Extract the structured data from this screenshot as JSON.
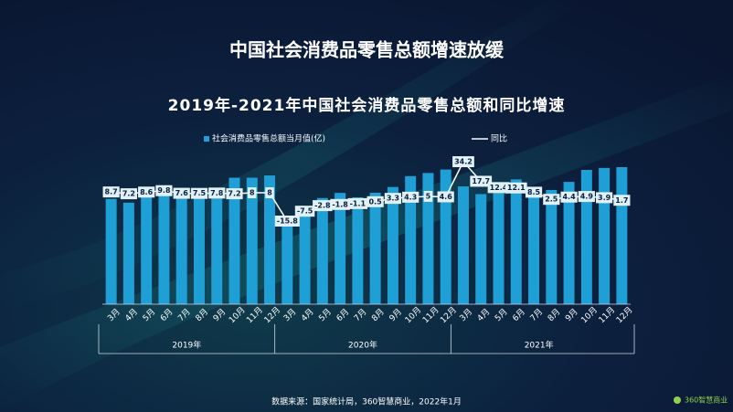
{
  "page_title": "中国社会消费品零售总额增速放缓",
  "chart_data": {
    "type": "bar-line",
    "title": "2019年-2021年中国社会消费品零售总额和同比增速",
    "categories": [
      "3月",
      "4月",
      "5月",
      "6月",
      "7月",
      "8月",
      "9月",
      "10月",
      "11月",
      "12月",
      "3月",
      "4月",
      "5月",
      "6月",
      "7月",
      "8月",
      "9月",
      "10月",
      "11月",
      "12月",
      "3月",
      "4月",
      "5月",
      "6月",
      "7月",
      "8月",
      "9月",
      "10月",
      "11月",
      "12月"
    ],
    "groups": [
      "2019年",
      "2020年",
      "2021年"
    ],
    "series": [
      {
        "name": "社会消费品零售总额当月值(亿)",
        "kind": "bar",
        "color": "#1e9fd6",
        "values": [
          31726,
          30586,
          32956,
          33878,
          33073,
          33896,
          34495,
          38104,
          38094,
          38777,
          26450,
          28178,
          31973,
          33526,
          32203,
          33571,
          35295,
          38576,
          39514,
          40566,
          35484,
          33153,
          35945,
          37586,
          34925,
          34395,
          36833,
          40454,
          41043,
          41269
        ]
      },
      {
        "name": "同比",
        "kind": "line",
        "color": "#ffffff",
        "values": [
          8.7,
          7.2,
          8.6,
          9.8,
          7.6,
          7.5,
          7.8,
          7.2,
          8,
          8,
          -15.8,
          -7.5,
          -2.8,
          -1.8,
          -1.1,
          0.5,
          3.3,
          4.3,
          5,
          4.6,
          34.2,
          17.7,
          12.4,
          12.1,
          8.5,
          2.5,
          4.4,
          4.9,
          3.9,
          1.7
        ]
      }
    ]
  },
  "source": "数据来源：国家统计局，360智慧商业，2022年1月",
  "logo": "360智慧商业"
}
